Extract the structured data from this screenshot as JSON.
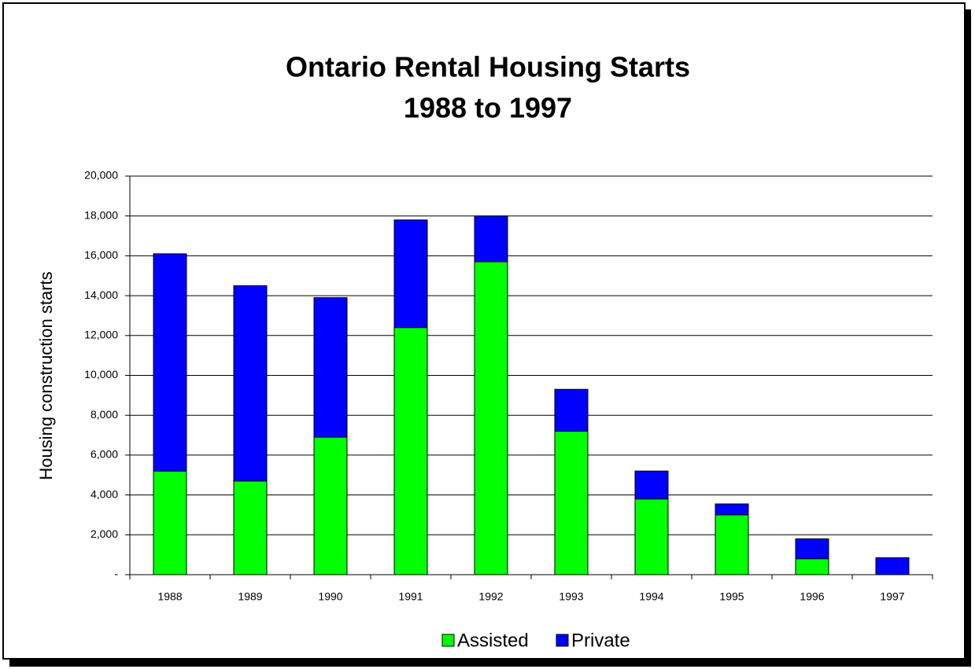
{
  "chart_data": {
    "type": "stacked_bar",
    "title": "Ontario Rental Housing Starts",
    "subtitle": "1988 to 1997",
    "y_label": "Housing construction starts",
    "categories": [
      "1988",
      "1989",
      "1990",
      "1991",
      "1992",
      "1993",
      "1994",
      "1995",
      "1996",
      "1997"
    ],
    "series": [
      {
        "name": "Assisted",
        "color": "#00ff00",
        "values": [
          5200,
          4700,
          6900,
          12400,
          15700,
          7200,
          3800,
          3000,
          800,
          0
        ]
      },
      {
        "name": "Private",
        "color": "#0000ff",
        "values": [
          10900,
          9800,
          7000,
          5400,
          2300,
          2100,
          1400,
          550,
          1000,
          850
        ]
      }
    ],
    "ylim": [
      0,
      20000
    ],
    "yticks": [
      {
        "value": 0,
        "label": "-"
      },
      {
        "value": 2000,
        "label": "2,000"
      },
      {
        "value": 4000,
        "label": "4,000"
      },
      {
        "value": 6000,
        "label": "6,000"
      },
      {
        "value": 8000,
        "label": "8,000"
      },
      {
        "value": 10000,
        "label": "10,000"
      },
      {
        "value": 12000,
        "label": "12,000"
      },
      {
        "value": 14000,
        "label": "14,000"
      },
      {
        "value": 16000,
        "label": "16,000"
      },
      {
        "value": 18000,
        "label": "18,000"
      },
      {
        "value": 20000,
        "label": "20,000"
      }
    ],
    "grid": true,
    "legend": "bottom"
  }
}
